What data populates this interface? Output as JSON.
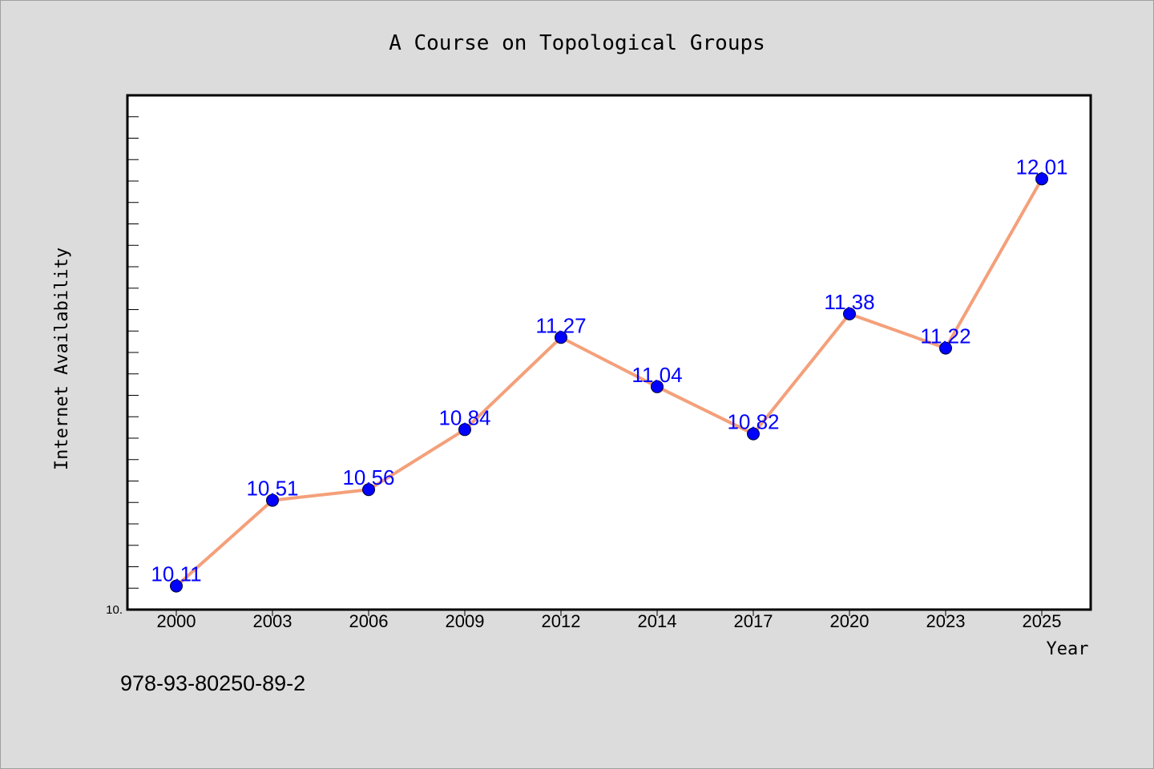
{
  "chart_data": {
    "type": "line",
    "title": "A Course on Topological Groups",
    "xlabel": "Year",
    "ylabel": "Internet Availability",
    "categories": [
      "2000",
      "2003",
      "2006",
      "2009",
      "2012",
      "2014",
      "2017",
      "2020",
      "2023",
      "2025"
    ],
    "series": [
      {
        "values": [
          10.11,
          10.51,
          10.56,
          10.84,
          11.27,
          11.04,
          10.82,
          11.38,
          11.22,
          12.01
        ],
        "labels": [
          "10.11",
          "10.51",
          "10.56",
          "10.84",
          "11.27",
          "11.04",
          "10.82",
          "11.38",
          "11.22",
          "12.01"
        ],
        "line_color": "#f4a07a",
        "marker_color": "#0000ff"
      }
    ],
    "ylim": [
      10.0,
      12.4
    ],
    "y_tick_label": "10.",
    "grid": false,
    "legend": "none"
  },
  "footer_text": "978-93-80250-89-2",
  "colors": {
    "background": "#dcdcdc",
    "plot_background": "#ffffff",
    "line": "#f4a07a",
    "marker": "#0000ff",
    "label": "#0000ff"
  }
}
